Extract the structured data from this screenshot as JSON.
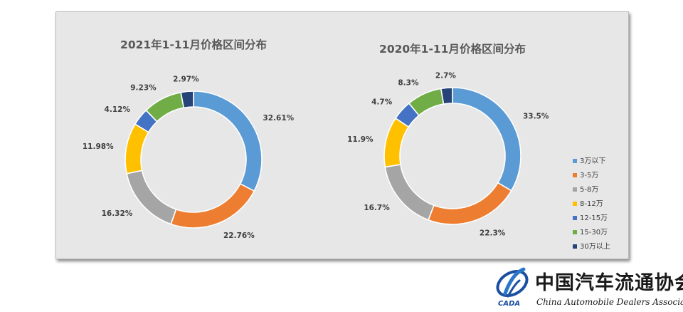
{
  "chart_data": [
    {
      "type": "donut",
      "title": "2021年1-11月价格区间分布",
      "categories": [
        "3万以下",
        "3-5万",
        "5-8万",
        "8-12万",
        "12-15万",
        "15-30万",
        "30万以上"
      ],
      "values": [
        32.61,
        22.76,
        16.32,
        11.98,
        4.12,
        9.23,
        2.97
      ],
      "labels": [
        "32.61%",
        "22.76%",
        "16.32%",
        "11.98%",
        "4.12%",
        "9.23%",
        "2.97%"
      ]
    },
    {
      "type": "donut",
      "title": "2020年1-11月价格区间分布",
      "categories": [
        "3万以下",
        "3-5万",
        "5-8万",
        "8-12万",
        "12-15万",
        "15-30万",
        "30万以上"
      ],
      "values": [
        33.5,
        22.3,
        16.7,
        11.9,
        4.7,
        8.3,
        2.7
      ],
      "labels": [
        "33.5%",
        "22.3%",
        "16.7%",
        "11.9%",
        "4.7%",
        "8.3%",
        "2.7%"
      ]
    }
  ],
  "legend": {
    "position": "right",
    "items": [
      "3万以下",
      "3-5万",
      "5-8万",
      "8-12万",
      "12-15万",
      "15-30万",
      "30万以上"
    ]
  },
  "colors": [
    "#5b9bd5",
    "#ed7d31",
    "#a5a5a5",
    "#ffc000",
    "#4472c4",
    "#70ad47",
    "#264478"
  ],
  "logo": {
    "abbr": "CADA",
    "name_cn": "中国汽车流通协会",
    "name_en": "China Automobile Dealers Association"
  }
}
